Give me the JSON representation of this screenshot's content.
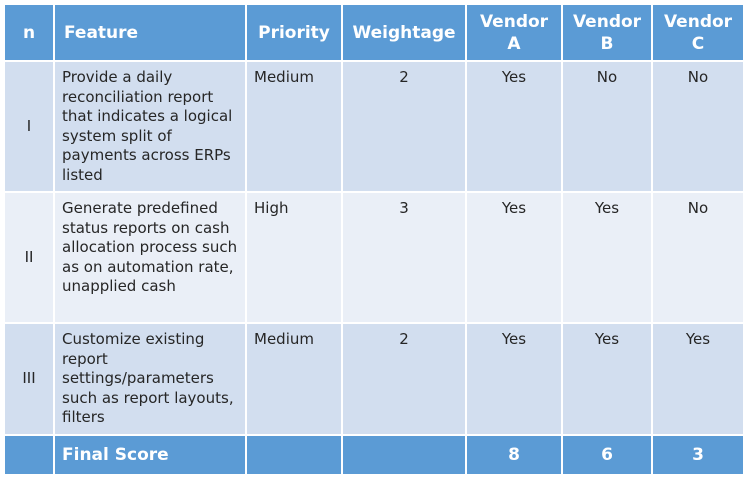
{
  "header": {
    "n": "n",
    "feature": "Feature",
    "priority": "Priority",
    "weightage": "Weightage",
    "vendor_a": {
      "line1": "Vendor",
      "line2": "A"
    },
    "vendor_b": {
      "line1": "Vendor",
      "line2": "B"
    },
    "vendor_c": {
      "line1": "Vendor",
      "line2": "C"
    }
  },
  "rows": [
    {
      "n": "I",
      "feature": "Provide a daily reconciliation report that indicates a logical system split of payments across ERPs listed",
      "priority": "Medium",
      "weightage": "2",
      "vendor_a": "Yes",
      "vendor_b": "No",
      "vendor_c": "No"
    },
    {
      "n": "II",
      "feature": "Generate predefined status reports on cash allocation process such as on automation rate, unapplied cash",
      "priority": "High",
      "weightage": "3",
      "vendor_a": "Yes",
      "vendor_b": "Yes",
      "vendor_c": "No"
    },
    {
      "n": "III",
      "feature": "Customize existing report settings/parameters such as report layouts, filters",
      "priority": "Medium",
      "weightage": "2",
      "vendor_a": "Yes",
      "vendor_b": "Yes",
      "vendor_c": "Yes"
    }
  ],
  "footer": {
    "label": "Final Score",
    "vendor_a": "8",
    "vendor_b": "6",
    "vendor_c": "3"
  },
  "colors": {
    "header_bg": "#5b9bd5",
    "row_odd_bg": "#d2deef",
    "row_even_bg": "#eaeff7",
    "text": "#262626"
  }
}
